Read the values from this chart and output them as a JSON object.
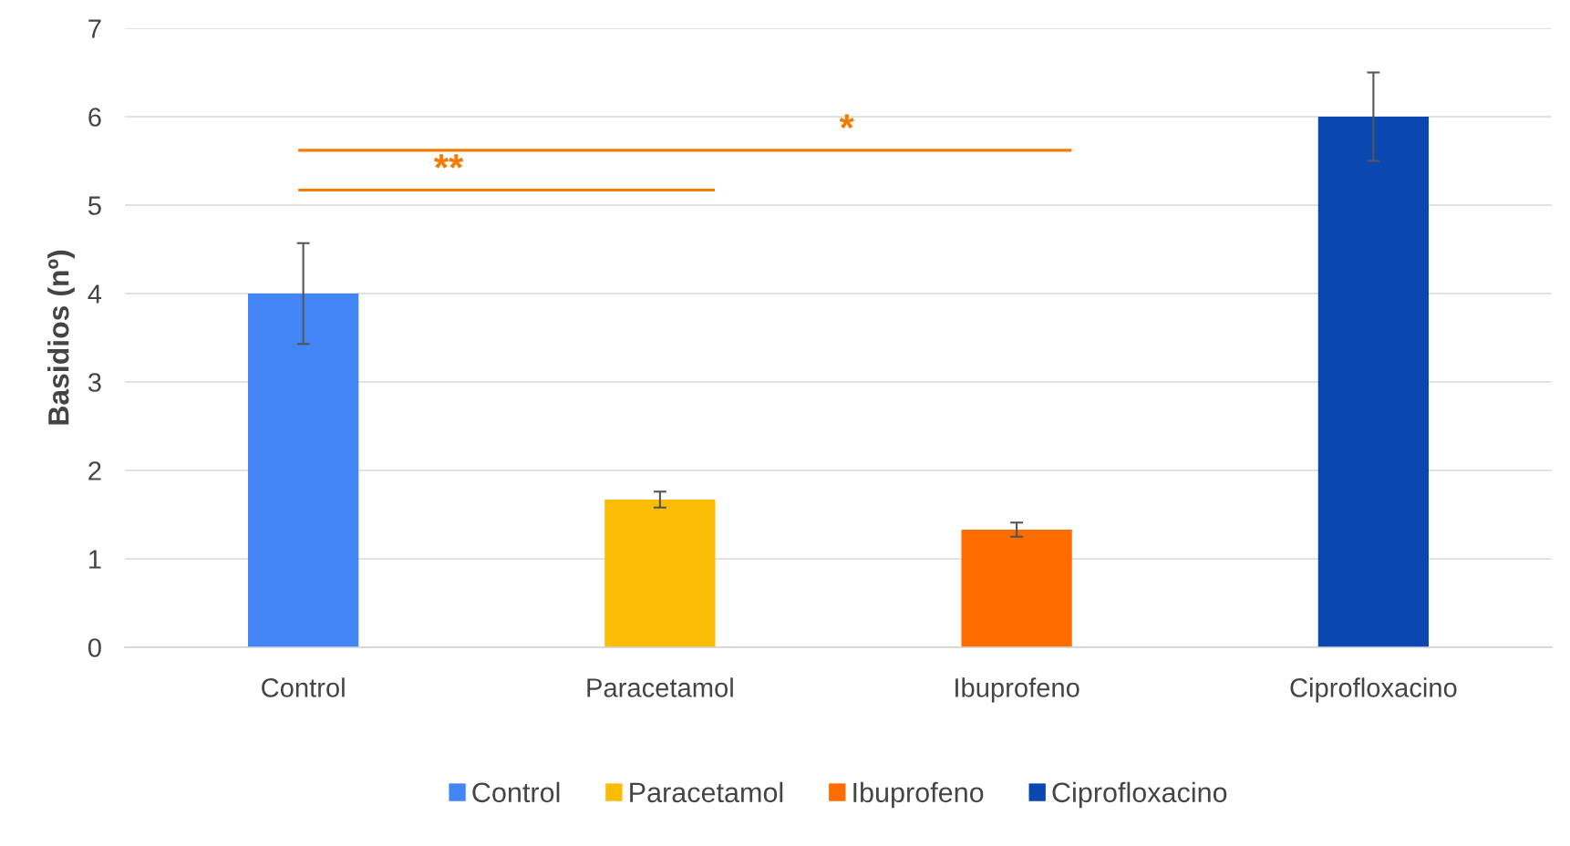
{
  "chart_data": {
    "type": "bar",
    "categories": [
      "Control",
      "Paracetamol",
      "Ibuprofeno",
      "Ciprofloxacino"
    ],
    "series": [
      {
        "name": "Control",
        "color": "#4285f4",
        "values": [
          4.0,
          null,
          null,
          null
        ],
        "errors": [
          0.57,
          null,
          null,
          null
        ]
      },
      {
        "name": "Paracetamol",
        "color": "#fbbc04",
        "values": [
          null,
          1.67,
          null,
          null
        ],
        "errors": [
          null,
          0.09,
          null,
          null
        ]
      },
      {
        "name": "Ibuprofeno",
        "color": "#ff6d01",
        "values": [
          null,
          null,
          1.33,
          null
        ],
        "errors": [
          null,
          null,
          0.08,
          null
        ]
      },
      {
        "name": "Ciprofloxacino",
        "color": "#0b47b0",
        "values": [
          null,
          null,
          null,
          6.0
        ],
        "errors": [
          null,
          null,
          null,
          0.5
        ]
      }
    ],
    "ylabel": "Basidios (nº)",
    "ylim": [
      0,
      7
    ],
    "yticks": [
      0,
      1,
      2,
      3,
      4,
      5,
      6,
      7
    ],
    "grid": "y",
    "legend": "bottom",
    "annotations": [
      "**",
      "*"
    ]
  }
}
